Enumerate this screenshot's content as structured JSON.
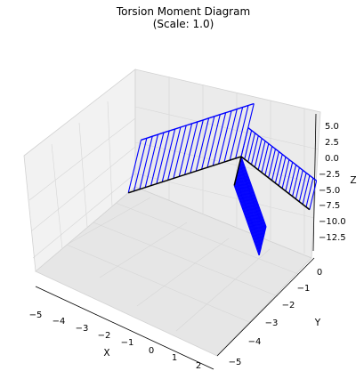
{
  "chart_data": {
    "type": "3d-line",
    "title": "Torsion Moment Diagram",
    "subtitle": "(Scale: 1.0)",
    "xlabel": "X",
    "ylabel": "Y",
    "zlabel": "Z",
    "xlim": [
      -5,
      2
    ],
    "ylim": [
      -5,
      0
    ],
    "zlim": [
      -13.5,
      6
    ],
    "xticks": [
      "−5",
      "−4",
      "−3",
      "−2",
      "−1",
      "0",
      "1",
      "2"
    ],
    "yticks": [
      "−5",
      "−4",
      "−3",
      "−2",
      "−1",
      "0"
    ],
    "zticks": [
      "5.0",
      "2.5",
      "0.0",
      "−2.5",
      "−5.0",
      "−7.5",
      "−10.0",
      "−12.5"
    ],
    "grid": true,
    "colors": {
      "diagram": "#0000ff",
      "member": "#000000",
      "pane": "#f2f2f2",
      "grid": "#d6d6d6"
    },
    "members": [
      {
        "name": "member-1",
        "from": [
          -4,
          0,
          0
        ],
        "to": [
          0,
          0,
          0
        ]
      },
      {
        "name": "member-2",
        "from": [
          0,
          0,
          0
        ],
        "to": [
          0,
          -4,
          0
        ]
      },
      {
        "name": "member-3",
        "from": [
          0,
          0,
          0
        ],
        "to": [
          0,
          0,
          -3
        ]
      }
    ],
    "diagrams": [
      {
        "member": "member-1",
        "value": 5.8,
        "divisions": 20
      },
      {
        "member": "member-2",
        "value": 5.0,
        "divisions": 20
      },
      {
        "member": "member-3",
        "value": 13.5,
        "divisions": 20
      }
    ]
  }
}
